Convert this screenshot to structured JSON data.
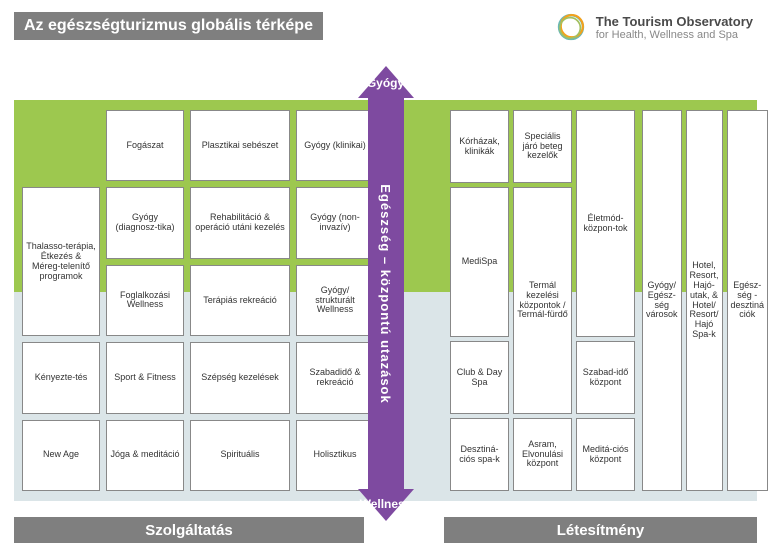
{
  "title": "Az egészségturizmus globális térképe",
  "logo": {
    "line1": "The Tourism Observatory",
    "line2": "for Health, Wellness and Spa"
  },
  "axis": {
    "top": "Gyógy",
    "bottom": "Wellness",
    "center": "Egészség – központú utazások",
    "color": "#7e4aa0"
  },
  "footer": {
    "left": "Szolgáltatás",
    "right": "Létesítmény"
  },
  "colors": {
    "bg_upper": "#9dc84f",
    "bg_lower": "#dbe5e8",
    "cell_bg": "#ffffff",
    "cell_border": "#888888",
    "header_bar": "#7f7f7f",
    "text": "#333333"
  },
  "left_grid": {
    "cols": 4,
    "rows": 5,
    "cells": [
      {
        "r": 0,
        "c": 1,
        "rs": 1,
        "cs": 1,
        "t": "Fogászat"
      },
      {
        "r": 0,
        "c": 2,
        "rs": 1,
        "cs": 1,
        "t": "Plasztikai sebészet"
      },
      {
        "r": 0,
        "c": 3,
        "rs": 1,
        "cs": 1,
        "t": "Gyógy (klinikai)"
      },
      {
        "r": 1,
        "c": 0,
        "rs": 2,
        "cs": 1,
        "t": "Thalasso-terápia, Étkezés & Méreg-telenítő programok"
      },
      {
        "r": 1,
        "c": 1,
        "rs": 1,
        "cs": 1,
        "t": "Gyógy (diagnosz-tika)"
      },
      {
        "r": 1,
        "c": 2,
        "rs": 1,
        "cs": 1,
        "t": "Rehabilitáció & operáció utáni kezelés"
      },
      {
        "r": 1,
        "c": 3,
        "rs": 1,
        "cs": 1,
        "t": "Gyógy (non-invazív)"
      },
      {
        "r": 2,
        "c": 1,
        "rs": 1,
        "cs": 1,
        "t": "Foglalkozási Wellness"
      },
      {
        "r": 2,
        "c": 2,
        "rs": 1,
        "cs": 1,
        "t": "Terápiás rekreáció"
      },
      {
        "r": 2,
        "c": 3,
        "rs": 1,
        "cs": 1,
        "t": "Gyógy/ strukturált Wellness"
      },
      {
        "r": 3,
        "c": 0,
        "rs": 1,
        "cs": 1,
        "t": "Kényezte-tés"
      },
      {
        "r": 3,
        "c": 1,
        "rs": 1,
        "cs": 1,
        "t": "Sport & Fitness"
      },
      {
        "r": 3,
        "c": 2,
        "rs": 1,
        "cs": 1,
        "t": "Szépség kezelések"
      },
      {
        "r": 3,
        "c": 3,
        "rs": 1,
        "cs": 1,
        "t": "Szabadidő & rekreáció"
      },
      {
        "r": 4,
        "c": 0,
        "rs": 1,
        "cs": 1,
        "t": "New Age"
      },
      {
        "r": 4,
        "c": 1,
        "rs": 1,
        "cs": 1,
        "t": "Jóga & meditáció"
      },
      {
        "r": 4,
        "c": 2,
        "rs": 1,
        "cs": 1,
        "t": "Spirituális"
      },
      {
        "r": 4,
        "c": 3,
        "rs": 1,
        "cs": 1,
        "t": "Holisztikus"
      }
    ]
  },
  "right_left_grid": {
    "cols": 3,
    "rows": 5,
    "cells": [
      {
        "r": 0,
        "c": 0,
        "rs": 1,
        "cs": 1,
        "t": "Kórházak, klinikák"
      },
      {
        "r": 0,
        "c": 1,
        "rs": 1,
        "cs": 1,
        "t": "Speciális járó beteg kezelők"
      },
      {
        "r": 1,
        "c": 0,
        "rs": 2,
        "cs": 1,
        "t": "MediSpa"
      },
      {
        "r": 1,
        "c": 1,
        "rs": 3,
        "cs": 1,
        "t": "Termál kezelési központok / Termál-fürdő"
      },
      {
        "r": 0,
        "c": 2,
        "rs": 3,
        "cs": 1,
        "t": "Életmód-közpon-tok"
      },
      {
        "r": 3,
        "c": 0,
        "rs": 1,
        "cs": 1,
        "t": "Club & Day Spa"
      },
      {
        "r": 3,
        "c": 2,
        "rs": 1,
        "cs": 1,
        "t": "Szabad-idő központ"
      },
      {
        "r": 4,
        "c": 0,
        "rs": 1,
        "cs": 1,
        "t": "Desztiná-ciós spa-k"
      },
      {
        "r": 4,
        "c": 1,
        "rs": 1,
        "cs": 1,
        "t": "Asram, Elvonulási központ"
      },
      {
        "r": 4,
        "c": 2,
        "rs": 1,
        "cs": 1,
        "t": "Meditá-ciós központ"
      }
    ]
  },
  "right_tall": [
    {
      "t": "Gyógy/ Egész-ség városok"
    },
    {
      "t": "Hotel, Resort, Hajó-utak, & Hotel/ Resort/ Hajó Spa-k"
    },
    {
      "t": "Egész-ség - desztiná ciók"
    }
  ]
}
